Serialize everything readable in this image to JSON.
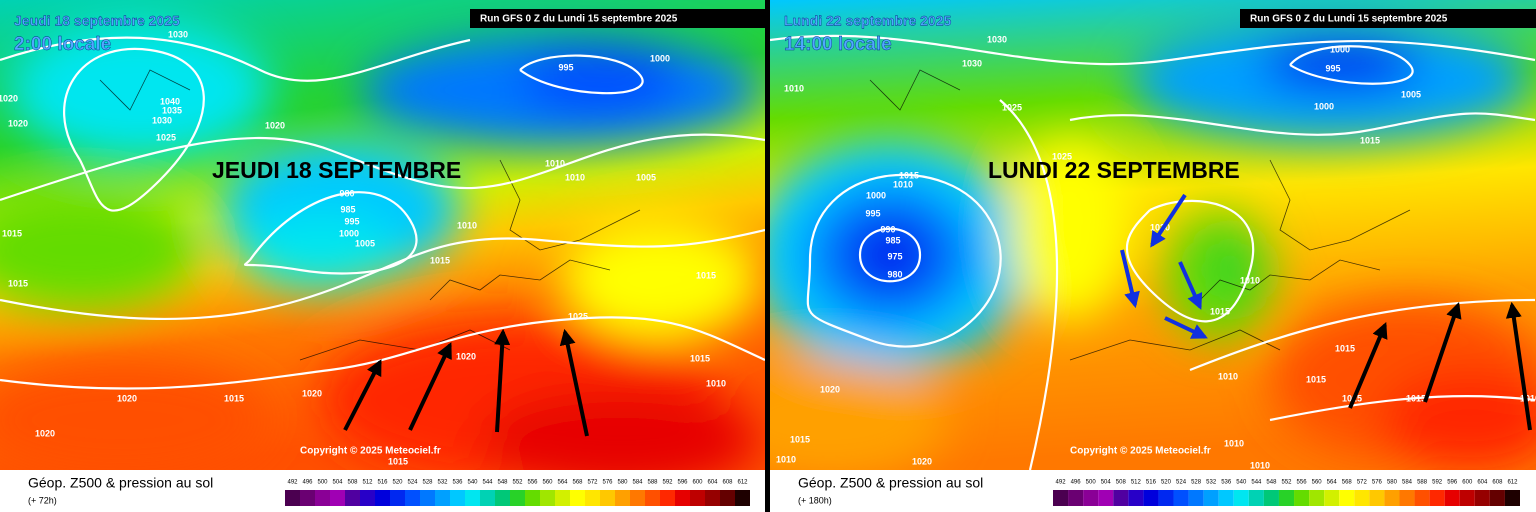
{
  "panels": [
    {
      "date": "Jeudi 18 septembre 2025",
      "local_time": "2:00 locale",
      "run": "Run GFS 0 Z du Lundi 15 septembre 2025",
      "headline": "JEUDI 18 SEPTEMBRE",
      "isobar_labels": [
        1030,
        1040,
        1035,
        1030,
        1025,
        1020,
        1020,
        1020,
        995,
        1000,
        1010,
        1010,
        1005,
        980,
        985,
        995,
        1000,
        1005,
        1010,
        1015,
        1015,
        1015,
        1025,
        1015,
        1015,
        1010,
        1020,
        1020,
        1015,
        1020,
        1020,
        1015
      ],
      "copyright": "Copyright © 2025 Meteociel.fr",
      "caption": "Géop. Z500 & pression au sol",
      "forecast": "(+ 72h)"
    },
    {
      "date": "Lundi 22 septembre 2025",
      "local_time": "14:00 locale",
      "run": "Run GFS 0 Z du Lundi 15 septembre 2025",
      "headline": "LUNDI 22 SEPTEMBRE",
      "isobar_labels": [
        1030,
        1030,
        1000,
        995,
        1000,
        1005,
        1015,
        1010,
        1025,
        1025,
        1015,
        1010,
        1000,
        995,
        990,
        985,
        975,
        980,
        1020,
        1010,
        1015,
        1010,
        1015,
        1015,
        1015,
        1015,
        1010,
        1020,
        1015,
        1010,
        1020,
        1010,
        1010
      ],
      "copyright": "Copyright © 2025 Meteociel.fr",
      "caption": "Géop. Z500 & pression au sol",
      "forecast": "(+ 180h)"
    }
  ],
  "legend": {
    "labels": [
      492,
      496,
      500,
      504,
      508,
      512,
      516,
      520,
      524,
      528,
      532,
      536,
      540,
      544,
      548,
      552,
      556,
      560,
      564,
      568,
      572,
      576,
      580,
      584,
      588,
      592,
      596,
      600,
      604,
      608,
      612
    ],
    "colors": [
      "#4b0050",
      "#6a0072",
      "#8a0096",
      "#a000b4",
      "#5000a0",
      "#2800c8",
      "#0000dc",
      "#0028f0",
      "#0050ff",
      "#0078ff",
      "#00a0ff",
      "#00c8ff",
      "#00e6f0",
      "#00d2b4",
      "#00c878",
      "#28d228",
      "#64dc00",
      "#a0e600",
      "#d2f000",
      "#ffff00",
      "#ffe600",
      "#ffc800",
      "#ffa000",
      "#ff7800",
      "#ff5000",
      "#ff2800",
      "#e60000",
      "#be0000",
      "#960000",
      "#640000",
      "#1e0000"
    ]
  }
}
